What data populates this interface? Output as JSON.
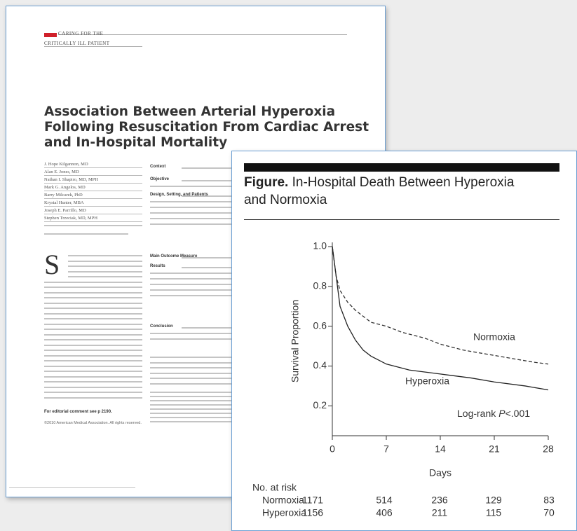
{
  "paper": {
    "header": [
      "CARING FOR THE",
      "CRITICALLY ILL PATIENT"
    ],
    "title": "Association Between Arterial Hyperoxia Following Resuscitation From Cardiac Arrest and In-Hospital Mortality",
    "authors": [
      "J. Hope Kilgannon, MD",
      "Alan E. Jones, MD",
      "Nathan I. Shapiro, MD, MPH",
      "Mark G. Angelos, MD",
      "Barry Milcarek, PhD",
      "Krystal Hunter, MBA",
      "Joseph E. Parrillo, MD",
      "Stephen Trzeciak, MD, MPH"
    ],
    "abstract_headings": [
      "Context",
      "Objective",
      "Design, Setting, and Patients",
      "Main Outcome Measure",
      "Results",
      "Conclusion"
    ],
    "editorial_note": "For editorial comment see p 2190.",
    "copyright": "©2010 American Medical Association. All rights reserved."
  },
  "figure_caption": {
    "label": "Figure.",
    "title": "In-Hospital Death Between Hyperoxia and Normoxia"
  },
  "chart_data": {
    "type": "line",
    "xlabel": "Days",
    "ylabel": "Survival Proportion",
    "xlim": [
      0,
      28
    ],
    "xticks": [
      0,
      7,
      14,
      21,
      28
    ],
    "ylim": [
      0.05,
      1.0
    ],
    "yticks": [
      0.2,
      0.4,
      0.6,
      0.8,
      {
        "value": 1.0,
        "label": "1.0"
      }
    ],
    "series": [
      {
        "name": "Normoxia",
        "color": "#333333",
        "dashed": true,
        "x": [
          0,
          0.5,
          1,
          2,
          3,
          4,
          5,
          7,
          9,
          12,
          14,
          17,
          20,
          23,
          26,
          28
        ],
        "values": [
          1.0,
          0.85,
          0.78,
          0.72,
          0.68,
          0.65,
          0.62,
          0.6,
          0.57,
          0.54,
          0.51,
          0.48,
          0.46,
          0.44,
          0.42,
          0.41
        ]
      },
      {
        "name": "Hyperoxia",
        "color": "#222222",
        "dashed": false,
        "x": [
          0,
          0.5,
          1,
          2,
          3,
          4,
          5,
          7,
          10,
          14,
          18,
          21,
          25,
          28
        ],
        "values": [
          1.0,
          0.85,
          0.7,
          0.6,
          0.53,
          0.48,
          0.45,
          0.41,
          0.38,
          0.36,
          0.34,
          0.32,
          0.3,
          0.28
        ]
      }
    ],
    "annotation": [
      "Log-rank",
      "P",
      "<.001"
    ]
  },
  "at_risk": {
    "label": "No. at risk",
    "rows": [
      {
        "name": "Normoxia",
        "values": [
          1171,
          514,
          236,
          129,
          83
        ]
      },
      {
        "name": "Hyperoxia",
        "values": [
          1156,
          406,
          211,
          115,
          70
        ]
      }
    ]
  }
}
